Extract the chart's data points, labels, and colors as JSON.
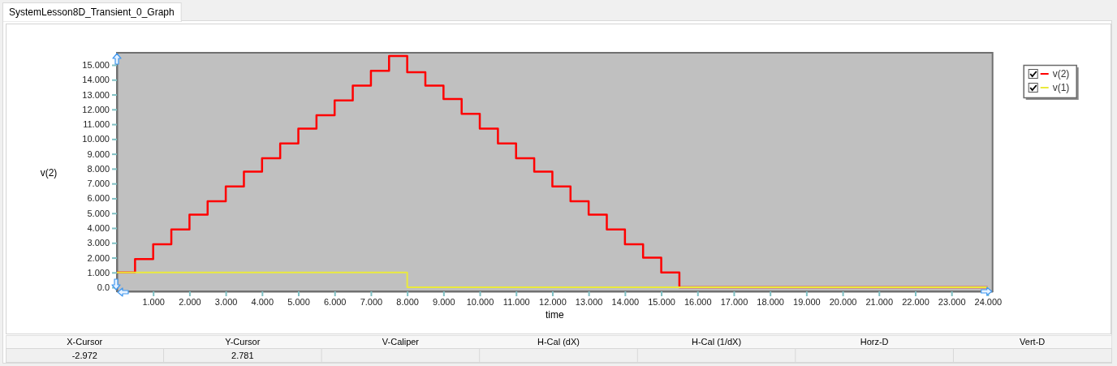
{
  "chart_data": {
    "type": "step",
    "title": "SystemLesson8D_Transient_0_Graph",
    "xlabel": "time",
    "ylabel": "v(2)",
    "xlim": [
      0,
      24.13
    ],
    "ylim": [
      -0.27,
      15.82
    ],
    "xticks": [
      {
        "value": 1,
        "label": "1.000"
      },
      {
        "value": 2,
        "label": "2.000"
      },
      {
        "value": 3,
        "label": "3.000"
      },
      {
        "value": 4,
        "label": "4.000"
      },
      {
        "value": 5,
        "label": "5.000"
      },
      {
        "value": 6,
        "label": "6.000"
      },
      {
        "value": 7,
        "label": "7.000"
      },
      {
        "value": 8,
        "label": "8.000"
      },
      {
        "value": 9,
        "label": "9.000"
      },
      {
        "value": 10,
        "label": "10.000"
      },
      {
        "value": 11,
        "label": "11.000"
      },
      {
        "value": 12,
        "label": "12.000"
      },
      {
        "value": 13,
        "label": "13.000"
      },
      {
        "value": 14,
        "label": "14.000"
      },
      {
        "value": 15,
        "label": "15.000"
      },
      {
        "value": 16,
        "label": "16.000"
      },
      {
        "value": 17,
        "label": "17.000"
      },
      {
        "value": 18,
        "label": "18.000"
      },
      {
        "value": 19,
        "label": "19.000"
      },
      {
        "value": 20,
        "label": "20.000"
      },
      {
        "value": 21,
        "label": "21.000"
      },
      {
        "value": 22,
        "label": "22.000"
      },
      {
        "value": 23,
        "label": "23.000"
      },
      {
        "value": 24,
        "label": "24.000"
      }
    ],
    "yticks": [
      {
        "value": 0,
        "label": "0.0"
      },
      {
        "value": 1,
        "label": "1.000"
      },
      {
        "value": 2,
        "label": "2.000"
      },
      {
        "value": 3,
        "label": "3.000"
      },
      {
        "value": 4,
        "label": "4.000"
      },
      {
        "value": 5,
        "label": "5.000"
      },
      {
        "value": 6,
        "label": "6.000"
      },
      {
        "value": 7,
        "label": "7.000"
      },
      {
        "value": 8,
        "label": "8.000"
      },
      {
        "value": 9,
        "label": "9.000"
      },
      {
        "value": 10,
        "label": "10.000"
      },
      {
        "value": 11,
        "label": "11.000"
      },
      {
        "value": 12,
        "label": "12.000"
      },
      {
        "value": 13,
        "label": "13.000"
      },
      {
        "value": 14,
        "label": "14.000"
      },
      {
        "value": 15,
        "label": "15.000"
      }
    ],
    "series": [
      {
        "name": "v(2)",
        "color": "#ff0000",
        "x": [
          0,
          0.5,
          1,
          1.5,
          2,
          2.5,
          3,
          3.5,
          4,
          4.5,
          5,
          5.5,
          6,
          6.5,
          7,
          7.5,
          8,
          8.5,
          9,
          9.5,
          10,
          10.5,
          11,
          11.5,
          12,
          12.5,
          13,
          13.5,
          14,
          14.5,
          15,
          15.5,
          24
        ],
        "values": [
          1.0,
          1.9,
          2.9,
          3.9,
          4.9,
          5.8,
          6.8,
          7.8,
          8.7,
          9.7,
          10.7,
          11.6,
          12.6,
          13.6,
          14.6,
          15.6,
          14.5,
          13.6,
          12.7,
          11.7,
          10.7,
          9.7,
          8.7,
          7.8,
          6.8,
          5.8,
          4.9,
          3.9,
          2.9,
          2.0,
          1.0,
          0,
          0
        ]
      },
      {
        "name": "v(1)",
        "color": "#eaea3c",
        "x": [
          0,
          8,
          24
        ],
        "values": [
          1,
          0,
          0
        ]
      }
    ],
    "legend": "top right",
    "line_style": "solid",
    "annotations": [
      "X-Cursor",
      "Y-Cursor",
      "V-Caliper",
      "H-Cal (dX)",
      "H-Cal (1/dX)",
      "Horz-D",
      "Vert-D",
      "-2.972",
      "2.781"
    ]
  }
}
